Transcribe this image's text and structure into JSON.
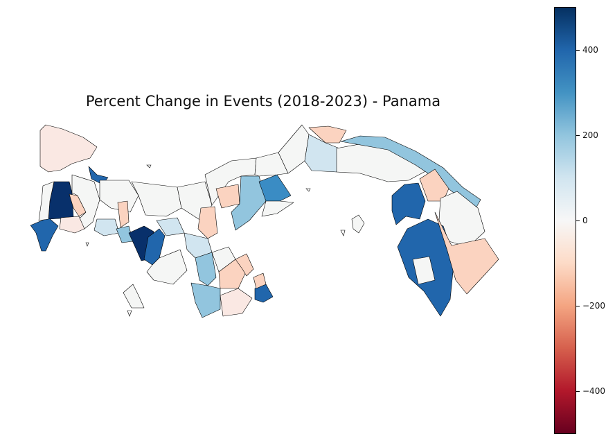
{
  "title": "Percent Change in Events (2018-2023) - Panama",
  "colorbar": {
    "colormap": "RdBu",
    "min": -500,
    "max": 500,
    "ticks": [
      {
        "value": 400,
        "label": "400"
      },
      {
        "value": 200,
        "label": "200"
      },
      {
        "value": 0,
        "label": "0"
      },
      {
        "value": -200,
        "label": "−200"
      },
      {
        "value": -400,
        "label": "−400"
      }
    ]
  },
  "colors": {
    "very_high": "#08306b",
    "high": "#2166ac",
    "mid_high": "#3a8cc4",
    "moderate": "#92c5de",
    "low_positive": "#d1e5f0",
    "near_zero": "#f5f6f5",
    "slight_negative": "#fae8e3",
    "negative": "#fbd3c0",
    "outline": "#000000"
  }
}
